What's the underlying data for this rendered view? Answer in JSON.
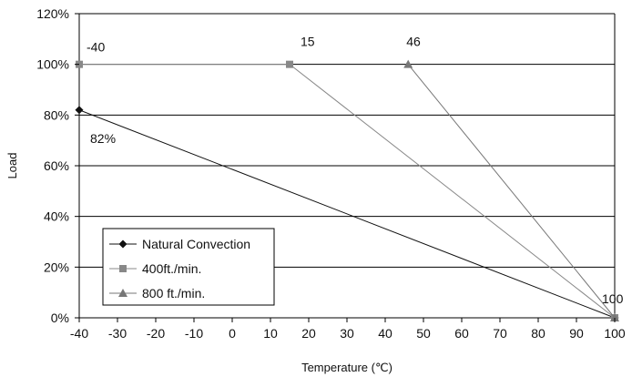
{
  "chart_data": {
    "type": "line",
    "xlabel": "Temperature (℃)",
    "ylabel": "Load",
    "xlim": [
      -40,
      100
    ],
    "ylim": [
      0,
      120
    ],
    "x_ticks": [
      -40,
      -30,
      -20,
      -10,
      0,
      10,
      20,
      30,
      40,
      50,
      60,
      70,
      80,
      90,
      100
    ],
    "x_tick_labels": [
      "-40",
      "-30",
      "-20",
      "-10",
      "0",
      "10",
      "20",
      "30",
      "40",
      "50",
      "60",
      "70",
      "80",
      "90",
      "100"
    ],
    "y_ticks": [
      0,
      20,
      40,
      60,
      80,
      100,
      120
    ],
    "y_tick_labels": [
      "0%",
      "20%",
      "40%",
      "60%",
      "80%",
      "100%",
      "120%"
    ],
    "grid": "horizontal",
    "legend_position": "bottom-left",
    "series": [
      {
        "name": "Natural Convection",
        "marker": "diamond",
        "color": "#111111",
        "x": [
          -40,
          100
        ],
        "y": [
          82,
          0
        ]
      },
      {
        "name": "400ft./min.",
        "marker": "square",
        "color": "#888888",
        "x": [
          -40,
          15,
          100
        ],
        "y": [
          100,
          100,
          0
        ]
      },
      {
        "name": "800 ft./min.",
        "marker": "triangle",
        "color": "#777777",
        "x": [
          46,
          100
        ],
        "y": [
          100,
          0
        ]
      }
    ],
    "annotations": [
      {
        "text": "-40",
        "x": -40,
        "y": 100
      },
      {
        "text": "15",
        "x": 15,
        "y": 100
      },
      {
        "text": "46",
        "x": 46,
        "y": 100
      },
      {
        "text": "82%",
        "x": -40,
        "y": 82
      },
      {
        "text": "100",
        "x": 100,
        "y": 0
      }
    ]
  }
}
